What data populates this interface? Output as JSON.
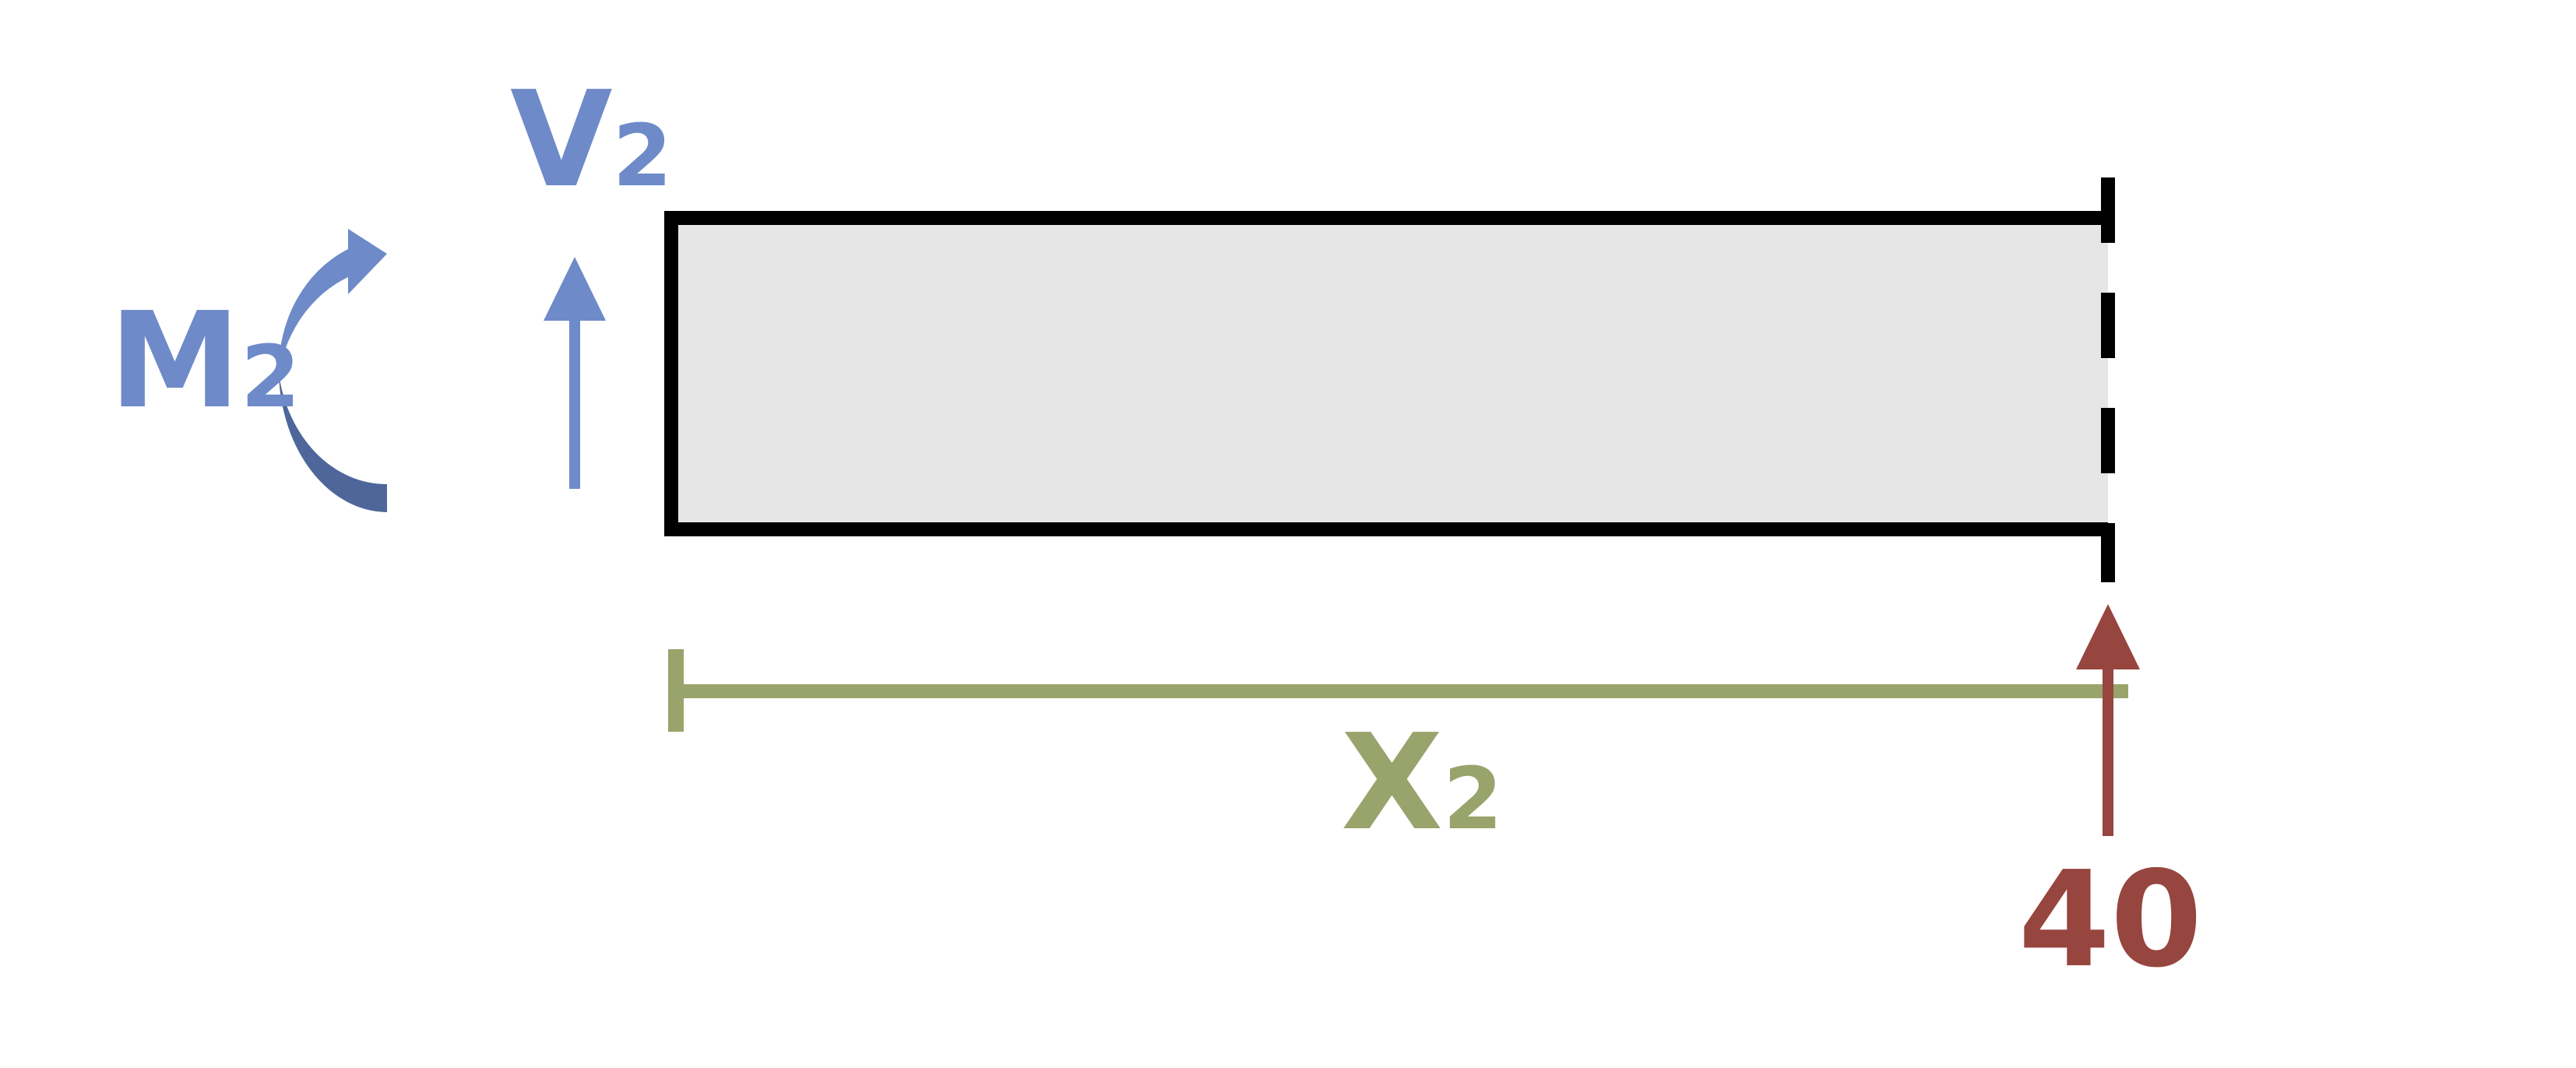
{
  "colors": {
    "reaction_blue": "#6E8AC8",
    "moment_dark_blue": "#4E6699",
    "dimension_green": "#99A36C",
    "load_red": "#97453F",
    "beam_fill": "#E6E6E6",
    "outline": "#000000"
  },
  "labels": {
    "moment": {
      "main": "M",
      "sub": "2"
    },
    "shear": {
      "main": "V",
      "sub": "2"
    },
    "length": {
      "main": "X",
      "sub": "2"
    },
    "load_value": "40"
  },
  "icons": {
    "moment_arrow": "curved-arrow-counterclockwise-icon",
    "shear_arrow": "arrow-up-icon",
    "load_arrow": "arrow-up-icon",
    "length_dimension": "dimension-line-icon"
  }
}
